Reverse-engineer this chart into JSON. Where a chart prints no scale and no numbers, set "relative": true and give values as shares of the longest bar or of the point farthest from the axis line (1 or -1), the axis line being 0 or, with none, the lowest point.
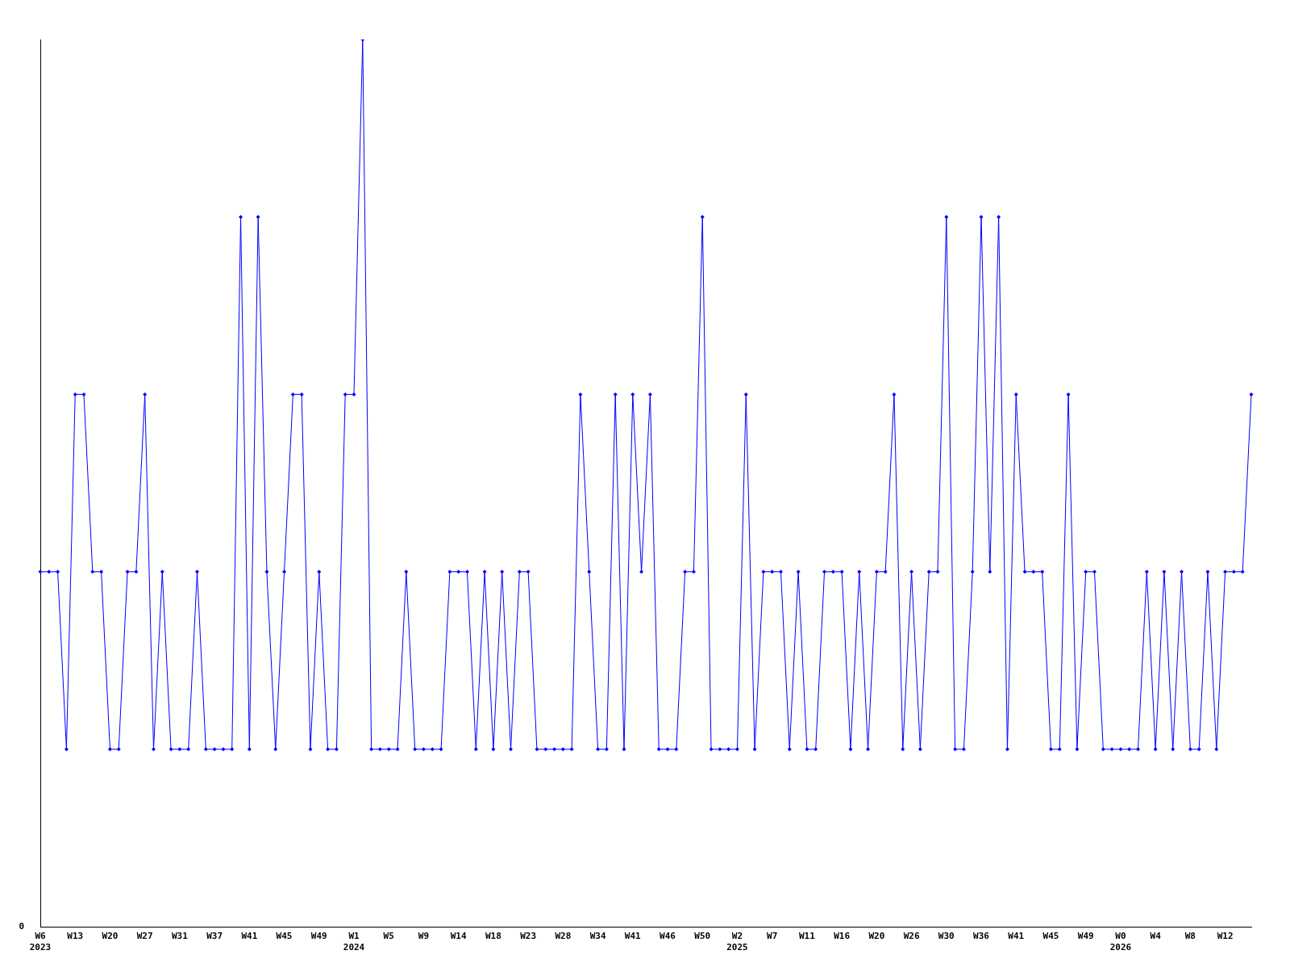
{
  "chart_data": {
    "type": "line",
    "relative": true,
    "color": "#0000ff",
    "marker": "diamond",
    "grid": false,
    "legend": false,
    "categories": [
      "W6\n2023",
      null,
      null,
      null,
      "W13",
      null,
      null,
      null,
      "W20",
      null,
      null,
      null,
      "W27",
      null,
      null,
      null,
      "W31",
      null,
      null,
      null,
      "W37",
      null,
      null,
      null,
      "W41",
      null,
      null,
      null,
      "W45",
      null,
      null,
      null,
      "W49",
      null,
      null,
      null,
      "W1\n2024",
      null,
      null,
      null,
      "W5",
      null,
      null,
      null,
      "W9",
      null,
      null,
      null,
      "W14",
      null,
      null,
      null,
      "W18",
      null,
      null,
      null,
      "W23",
      null,
      null,
      null,
      "W28",
      null,
      null,
      null,
      "W34",
      null,
      null,
      null,
      "W41",
      null,
      null,
      null,
      "W46",
      null,
      null,
      null,
      "W50",
      null,
      null,
      null,
      "W2\n2025",
      null,
      null,
      null,
      "W7",
      null,
      null,
      null,
      "W11",
      null,
      null,
      null,
      "W16",
      null,
      null,
      null,
      "W20",
      null,
      null,
      null,
      "W26",
      null,
      null,
      null,
      "W30",
      null,
      null,
      null,
      "W36",
      null,
      null,
      null,
      "W41",
      null,
      null,
      null,
      "W45",
      null,
      null,
      null,
      "W49",
      null,
      null,
      null,
      "W0\n2026",
      null,
      null,
      null,
      "W4",
      null,
      null,
      null,
      "W8",
      null,
      null,
      null,
      "W12",
      null,
      null,
      null
    ],
    "values": [
      0.4,
      0.4,
      0.4,
      0.2,
      0.6,
      0.6,
      0.4,
      0.4,
      0.2,
      0.2,
      0.4,
      0.4,
      0.6,
      0.2,
      0.4,
      0.2,
      0.2,
      0.2,
      0.4,
      0.2,
      0.2,
      0.2,
      0.2,
      0.8,
      0.2,
      0.8,
      0.4,
      0.2,
      0.4,
      0.6,
      0.6,
      0.2,
      0.4,
      0.2,
      0.2,
      0.6,
      0.6,
      1,
      0.2,
      0.2,
      0.2,
      0.2,
      0.4,
      0.2,
      0.2,
      0.2,
      0.2,
      0.4,
      0.4,
      0.4,
      0.2,
      0.4,
      0.2,
      0.4,
      0.2,
      0.4,
      0.4,
      0.2,
      0.2,
      0.2,
      0.2,
      0.2,
      0.6,
      0.4,
      0.2,
      0.2,
      0.6,
      0.2,
      0.6,
      0.4,
      0.6,
      0.2,
      0.2,
      0.2,
      0.4,
      0.4,
      0.8,
      0.2,
      0.2,
      0.2,
      0.2,
      0.6,
      0.2,
      0.4,
      0.4,
      0.4,
      0.2,
      0.4,
      0.2,
      0.2,
      0.4,
      0.4,
      0.4,
      0.2,
      0.4,
      0.2,
      0.4,
      0.4,
      0.6,
      0.2,
      0.4,
      0.2,
      0.4,
      0.4,
      0.8,
      0.2,
      0.2,
      0.4,
      0.8,
      0.4,
      0.8,
      0.2,
      0.6,
      0.4,
      0.4,
      0.4,
      0.2,
      0.2,
      0.6,
      0.2,
      0.4,
      0.4,
      0.2,
      0.2,
      0.2,
      0.2,
      0.2,
      0.4,
      0.2,
      0.4,
      0.2,
      0.4,
      0.2,
      0.2,
      0.4,
      0.2,
      0.4,
      0.4,
      0.4,
      0.6
    ],
    "annotations": [
      "0"
    ]
  }
}
